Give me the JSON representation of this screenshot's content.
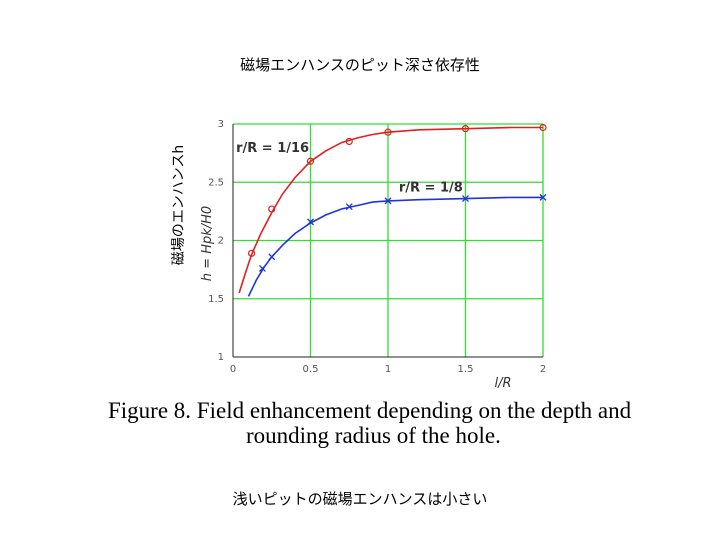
{
  "slide": {
    "title": "磁場エンハンスのピット深さ依存性",
    "side_label": "磁場のエンハンスh",
    "caption_line1": "Figure 8. Field enhancement depending on the depth and",
    "caption_line2": "rounding radius of the hole.",
    "bottom_note": "浅いピットの磁場エンハンスは小さい"
  },
  "chart_data": {
    "type": "line",
    "title": "",
    "xlabel": "l/R",
    "ylabel": "h = Hpk/H0",
    "xlim": [
      0,
      2
    ],
    "ylim": [
      1,
      3
    ],
    "x_ticks": [
      0,
      0.5,
      1,
      1.5,
      2
    ],
    "x_tick_labels": [
      "0",
      "0.5",
      "1",
      "1.5",
      "2"
    ],
    "y_ticks": [
      1,
      1.5,
      2,
      2.5,
      3
    ],
    "y_tick_labels": [
      "1",
      "1.5",
      "2",
      "2.5",
      "3"
    ],
    "grid": true,
    "colors": {
      "r16": "#e02020",
      "r8": "#1f35d8",
      "grid": "#33dd33"
    },
    "series": [
      {
        "name": "r/R = 1/16",
        "color": "#e02020",
        "marker": "circle",
        "curve": {
          "x": [
            0.04,
            0.08,
            0.12,
            0.18,
            0.25,
            0.32,
            0.4,
            0.5,
            0.6,
            0.7,
            0.8,
            0.9,
            1.0,
            1.2,
            1.5,
            1.8,
            2.0
          ],
          "y": [
            1.55,
            1.72,
            1.88,
            2.06,
            2.24,
            2.4,
            2.54,
            2.68,
            2.77,
            2.84,
            2.88,
            2.91,
            2.93,
            2.95,
            2.96,
            2.97,
            2.97
          ]
        },
        "markers": {
          "x": [
            0.12,
            0.25,
            0.5,
            0.75,
            1.0,
            1.5,
            2.0
          ],
          "y": [
            1.89,
            2.27,
            2.68,
            2.85,
            2.93,
            2.96,
            2.97
          ]
        }
      },
      {
        "name": "r/R = 1/8",
        "color": "#1f35d8",
        "marker": "x",
        "curve": {
          "x": [
            0.1,
            0.15,
            0.2,
            0.25,
            0.32,
            0.4,
            0.5,
            0.6,
            0.7,
            0.8,
            0.9,
            1.0,
            1.2,
            1.5,
            1.8,
            2.0
          ],
          "y": [
            1.52,
            1.66,
            1.77,
            1.86,
            1.96,
            2.06,
            2.15,
            2.22,
            2.27,
            2.3,
            2.33,
            2.34,
            2.35,
            2.36,
            2.37,
            2.37
          ]
        },
        "markers": {
          "x": [
            0.19,
            0.25,
            0.5,
            0.75,
            1.0,
            1.5,
            2.0
          ],
          "y": [
            1.76,
            1.86,
            2.16,
            2.29,
            2.34,
            2.36,
            2.37
          ]
        }
      }
    ]
  }
}
